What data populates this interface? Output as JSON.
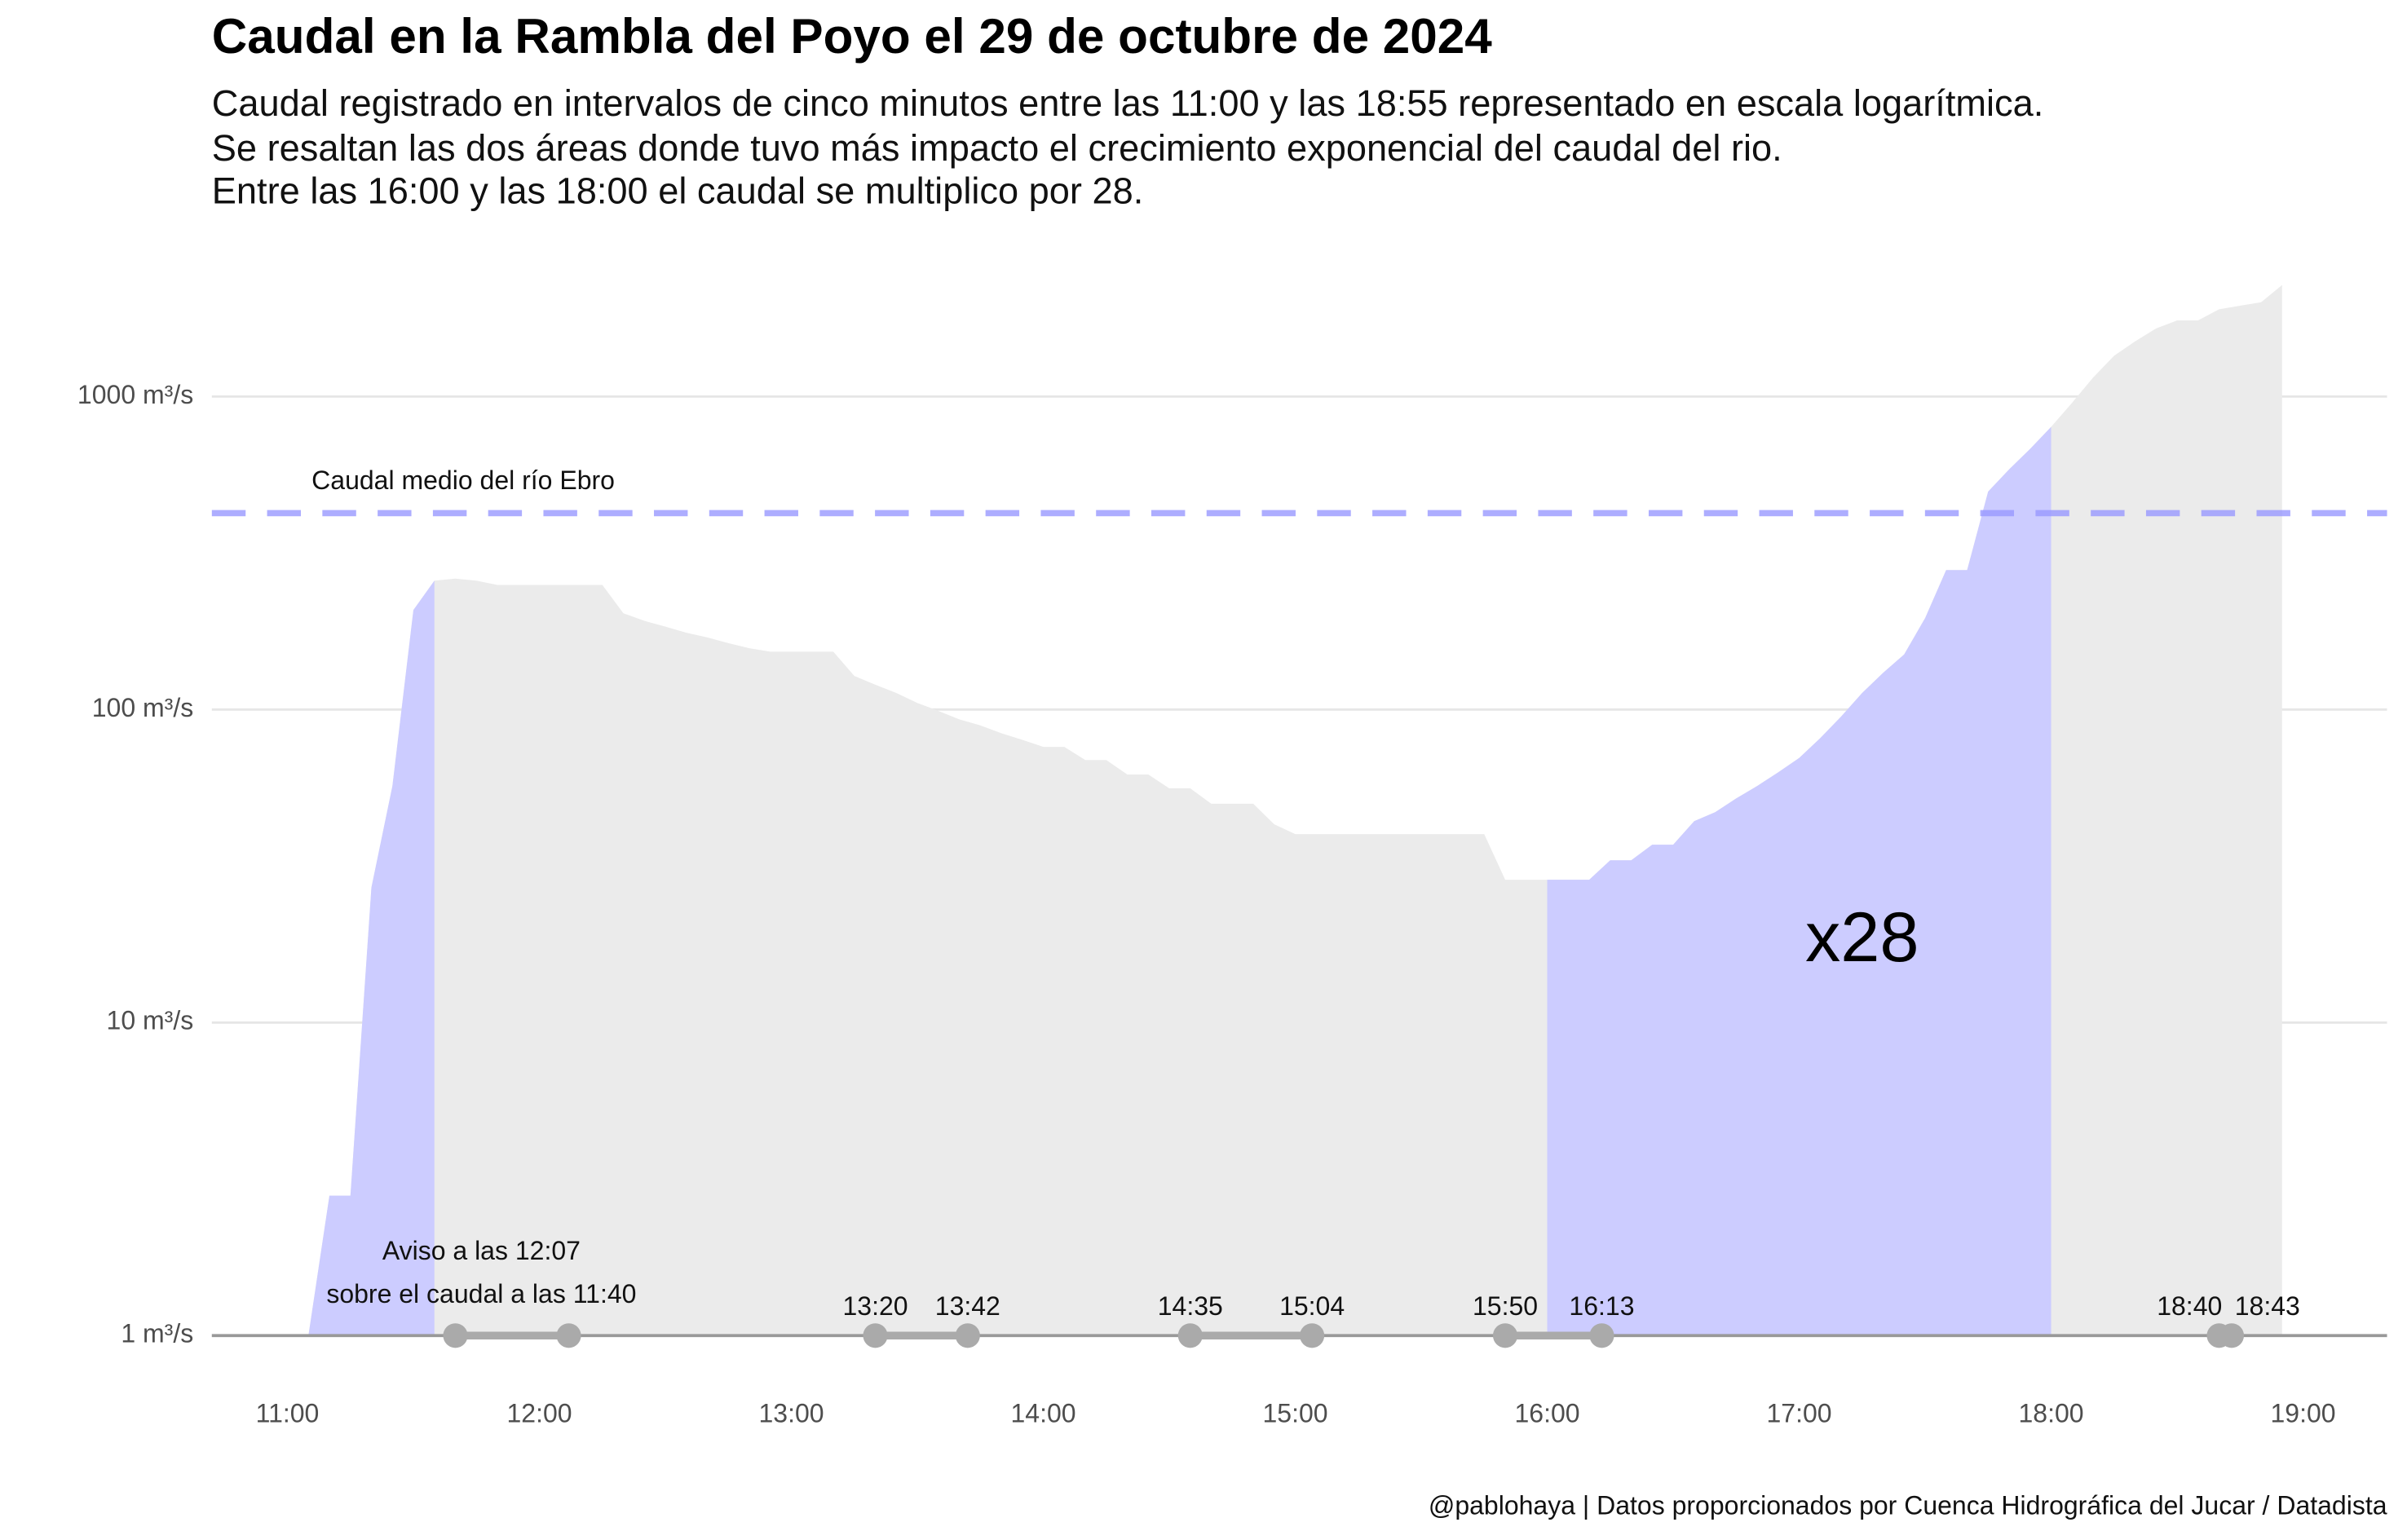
{
  "chart_data": {
    "type": "area",
    "title": "Caudal en la Rambla del Poyo el 29 de octubre de 2024",
    "subtitle": [
      "Caudal registrado en intervalos de cinco minutos entre las 11:00 y las 18:55 representado en escala logarítmica.",
      "Se resaltan las dos áreas donde tuvo más impacto el crecimiento exponencial del caudal del rio.",
      "Entre las 16:00 y las 18:00 el caudal se multiplico por 28."
    ],
    "caption": "@pablohaya | Datos proporcionados por Cuenca Hidrográfica del Jucar / Datadista",
    "log_y": true,
    "grid": true,
    "xlim": [
      "10:42",
      "19:20"
    ],
    "xticks": [
      "11:00",
      "12:00",
      "13:00",
      "14:00",
      "15:00",
      "16:00",
      "17:00",
      "18:00",
      "19:00"
    ],
    "ylim": [
      1,
      2500
    ],
    "yticks": [
      {
        "value": 1,
        "label": "1 m³/s"
      },
      {
        "value": 10,
        "label": "10 m³/s"
      },
      {
        "value": 100,
        "label": "100 m³/s"
      },
      {
        "value": 1000,
        "label": "1000 m³/s"
      }
    ],
    "x": [
      "11:05",
      "11:10",
      "11:15",
      "11:20",
      "11:25",
      "11:30",
      "11:35",
      "11:40",
      "11:45",
      "11:50",
      "11:55",
      "12:00",
      "12:05",
      "12:10",
      "12:15",
      "12:20",
      "12:25",
      "12:30",
      "12:35",
      "12:40",
      "12:45",
      "12:50",
      "12:55",
      "13:00",
      "13:05",
      "13:10",
      "13:15",
      "13:20",
      "13:25",
      "13:30",
      "13:35",
      "13:40",
      "13:45",
      "13:50",
      "13:55",
      "14:00",
      "14:05",
      "14:10",
      "14:15",
      "14:20",
      "14:25",
      "14:30",
      "14:35",
      "14:40",
      "14:45",
      "14:50",
      "14:55",
      "15:00",
      "15:05",
      "15:10",
      "15:15",
      "15:20",
      "15:25",
      "15:30",
      "15:35",
      "15:40",
      "15:45",
      "15:50",
      "15:55",
      "16:00",
      "16:05",
      "16:10",
      "16:15",
      "16:20",
      "16:25",
      "16:30",
      "16:35",
      "16:40",
      "16:45",
      "16:50",
      "16:55",
      "17:00",
      "17:05",
      "17:10",
      "17:15",
      "17:20",
      "17:25",
      "17:30",
      "17:35",
      "17:40",
      "17:45",
      "17:50",
      "17:55",
      "18:00",
      "18:05",
      "18:10",
      "18:15",
      "18:20",
      "18:25",
      "18:30",
      "18:35",
      "18:40",
      "18:45",
      "18:50",
      "18:55"
    ],
    "series": [
      {
        "color": "#ebebeb",
        "values": [
          1,
          2.8,
          2.8,
          27,
          57,
          208,
          258,
          262,
          258,
          250,
          250,
          250,
          250,
          250,
          250,
          203,
          192,
          184,
          176,
          170,
          163,
          157,
          153,
          153,
          153,
          153,
          128,
          120,
          113,
          105,
          99,
          93,
          89,
          84,
          80,
          76,
          76,
          69,
          69,
          62,
          62,
          56,
          56,
          50,
          50,
          50,
          43,
          40,
          40,
          40,
          40,
          40,
          40,
          40,
          40,
          40,
          40,
          28.6,
          28.6,
          28.6,
          28.6,
          28.6,
          33,
          33,
          37,
          37,
          44,
          47,
          52,
          57,
          63,
          70,
          81,
          95,
          113,
          131,
          150,
          196,
          279,
          279,
          497,
          585,
          680,
          800,
          955,
          1150,
          1350,
          1500,
          1650,
          1750,
          1750,
          1900,
          1950,
          2000,
          2270
        ]
      }
    ],
    "highlights": [
      {
        "from": "11:05",
        "to": "11:35"
      },
      {
        "from": "16:00",
        "to": "18:00"
      }
    ],
    "highlight_color": "#ccccff",
    "reference": {
      "value": 424,
      "label": "Caudal medio del río Ebro",
      "color": "#9999ff"
    },
    "annotation": {
      "text": "x28",
      "x": "17:15",
      "y": 18
    },
    "alerts": [
      {
        "from": "11:40",
        "to": "12:07",
        "labels": [
          "Aviso a las 12:07",
          "sobre el caudal a las 11:40"
        ]
      },
      {
        "from": "13:20",
        "to": "13:42"
      },
      {
        "from": "14:35",
        "to": "15:04"
      },
      {
        "from": "15:50",
        "to": "16:13"
      },
      {
        "from": "18:40",
        "to": "18:43"
      }
    ],
    "alert_color": "#aaaaaa"
  }
}
